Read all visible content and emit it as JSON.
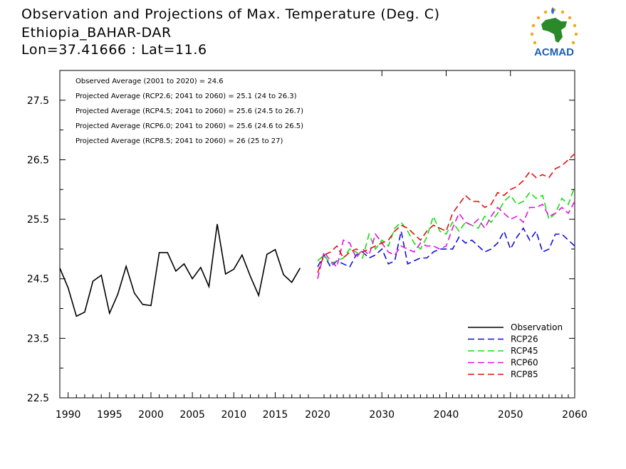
{
  "header": {
    "title": "Observation and Projections of Max. Temperature (Deg. C)",
    "station": "Ethiopia_BAHAR-DAR",
    "coords": "Lon=37.41666 : Lat=11.6"
  },
  "logo": {
    "text": "ACMAD"
  },
  "colors": {
    "Observation": "#000000",
    "RCP26": "#1010d8",
    "RCP45": "#10e010",
    "RCP60": "#e010e0",
    "RCP85": "#e01010"
  },
  "chart_data": {
    "type": "line",
    "title": "Observation and Projections of Max. Temperature (Deg. C)",
    "ylim": [
      22.5,
      28
    ],
    "yticks": [
      "22.5",
      "23.5",
      "24.5",
      "25.5",
      "26.5",
      "27.5"
    ],
    "xticks_obs": [
      "1990",
      "1995",
      "2000",
      "2005",
      "2010",
      "2015",
      "2020"
    ],
    "xticks_proj": [
      "2030",
      "2040",
      "2050",
      "2060"
    ],
    "annotations": [
      "Observed Average (2001 to 2020) = 24.6",
      "Projected Average (RCP2.6; 2041 to 2060) = 25.1 (24 to 26.3)",
      "Projected Average (RCP4.5; 2041 to 2060) = 25.6 (24.5 to 26.7)",
      "Projected Average (RCP6.0; 2041 to 2060) = 25.6 (24.6 to 26.5)",
      "Projected Average (RCP8.5; 2041 to 2060) = 26 (25 to 27)"
    ],
    "legend_position": "bottom-right",
    "series": [
      {
        "name": "Observation",
        "x": [
          1989,
          1990,
          1991,
          1992,
          1993,
          1994,
          1995,
          1996,
          1997,
          1998,
          1999,
          2000,
          2001,
          2002,
          2003,
          2004,
          2005,
          2006,
          2007,
          2008,
          2009,
          2010,
          2011,
          2012,
          2013,
          2014,
          2015,
          2016,
          2017,
          2018,
          2019
        ],
        "values": [
          24.68,
          24.35,
          23.87,
          23.94,
          24.46,
          24.56,
          23.92,
          24.24,
          24.71,
          24.26,
          24.07,
          24.05,
          24.94,
          24.94,
          24.63,
          24.75,
          24.5,
          24.69,
          24.37,
          25.42,
          24.58,
          24.66,
          24.9,
          24.54,
          24.22,
          24.91,
          24.99,
          24.57,
          24.44,
          24.68,
          null
        ]
      },
      {
        "name": "RCP26",
        "x": [
          2020,
          2021,
          2022,
          2023,
          2024,
          2025,
          2026,
          2027,
          2028,
          2029,
          2030,
          2031,
          2032,
          2033,
          2034,
          2035,
          2036,
          2037,
          2038,
          2039,
          2040,
          2041,
          2042,
          2043,
          2044,
          2045,
          2046,
          2047,
          2048,
          2049,
          2050,
          2051,
          2052,
          2053,
          2054,
          2055,
          2056,
          2057,
          2058,
          2059,
          2060
        ],
        "values": [
          24.7,
          24.9,
          24.7,
          24.8,
          24.75,
          24.7,
          24.9,
          24.95,
          24.85,
          24.9,
          25.0,
          24.75,
          24.8,
          25.3,
          24.75,
          24.8,
          24.85,
          24.85,
          24.95,
          25.0,
          25.0,
          25.0,
          25.2,
          25.1,
          25.15,
          25.05,
          24.95,
          25.0,
          25.1,
          25.3,
          25.0,
          25.2,
          25.35,
          25.15,
          25.3,
          24.95,
          25.0,
          25.25,
          25.25,
          25.15,
          25.05
        ]
      },
      {
        "name": "RCP45",
        "x": [
          2020,
          2021,
          2022,
          2023,
          2024,
          2025,
          2026,
          2027,
          2028,
          2029,
          2030,
          2031,
          2032,
          2033,
          2034,
          2035,
          2036,
          2037,
          2038,
          2039,
          2040,
          2041,
          2042,
          2043,
          2044,
          2045,
          2046,
          2047,
          2048,
          2049,
          2050,
          2051,
          2052,
          2053,
          2054,
          2055,
          2056,
          2057,
          2058,
          2059,
          2060
        ],
        "values": [
          24.8,
          24.9,
          24.75,
          24.8,
          24.85,
          25.0,
          24.95,
          24.85,
          25.25,
          25.0,
          25.15,
          25.05,
          25.35,
          25.45,
          25.3,
          25.1,
          25.0,
          25.2,
          25.55,
          25.3,
          25.25,
          25.45,
          25.3,
          25.45,
          25.4,
          25.35,
          25.55,
          25.45,
          25.6,
          25.8,
          25.9,
          25.75,
          25.8,
          25.95,
          25.85,
          25.9,
          25.5,
          25.6,
          25.85,
          25.75,
          26.05
        ]
      },
      {
        "name": "RCP60",
        "x": [
          2020,
          2021,
          2022,
          2023,
          2024,
          2025,
          2026,
          2027,
          2028,
          2029,
          2030,
          2031,
          2032,
          2033,
          2034,
          2035,
          2036,
          2037,
          2038,
          2039,
          2040,
          2041,
          2042,
          2043,
          2044,
          2045,
          2046,
          2047,
          2048,
          2049,
          2050,
          2051,
          2052,
          2053,
          2054,
          2055,
          2056,
          2057,
          2058,
          2059,
          2060
        ],
        "values": [
          24.5,
          24.95,
          24.8,
          24.7,
          25.15,
          25.1,
          24.85,
          25.0,
          24.9,
          25.25,
          25.1,
          24.95,
          24.9,
          25.05,
          25.0,
          24.95,
          25.1,
          25.05,
          25.05,
          25.0,
          25.05,
          25.35,
          25.6,
          25.45,
          25.4,
          25.5,
          25.35,
          25.55,
          25.7,
          25.6,
          25.5,
          25.55,
          25.45,
          25.7,
          25.7,
          25.75,
          25.55,
          25.6,
          25.7,
          25.6,
          25.8
        ]
      },
      {
        "name": "RCP85",
        "x": [
          2020,
          2021,
          2022,
          2023,
          2024,
          2025,
          2026,
          2027,
          2028,
          2029,
          2030,
          2031,
          2032,
          2033,
          2034,
          2035,
          2036,
          2037,
          2038,
          2039,
          2040,
          2041,
          2042,
          2043,
          2044,
          2045,
          2046,
          2047,
          2048,
          2049,
          2050,
          2051,
          2052,
          2053,
          2054,
          2055,
          2056,
          2057,
          2058,
          2059,
          2060
        ],
        "values": [
          24.6,
          24.9,
          24.95,
          25.05,
          24.85,
          24.95,
          25.0,
          24.95,
          25.0,
          25.05,
          25.1,
          25.15,
          25.3,
          25.4,
          25.35,
          25.25,
          25.15,
          25.3,
          25.4,
          25.35,
          25.3,
          25.6,
          25.75,
          25.9,
          25.8,
          25.8,
          25.7,
          25.75,
          25.95,
          25.9,
          26.0,
          26.05,
          26.15,
          26.3,
          26.2,
          26.25,
          26.2,
          26.35,
          26.4,
          26.5,
          26.6
        ]
      }
    ]
  }
}
